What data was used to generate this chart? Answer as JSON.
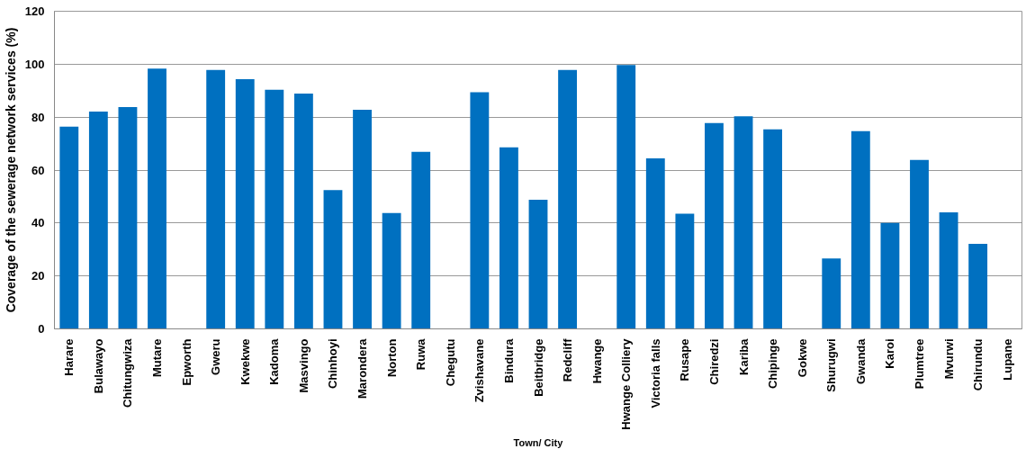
{
  "chart_data": {
    "type": "bar",
    "xlabel": "Town/ City",
    "ylabel": "Coverage of the sewerage network services (%)",
    "categories": [
      "Harare",
      "Bulawayo",
      "Chitungwiza",
      "Mutare",
      "Epworth",
      "Gweru",
      "Kwekwe",
      "Kadoma",
      "Masvingo",
      "Chinhoyi",
      "Marondera",
      "Norton",
      "Ruwa",
      "Chegutu",
      "Zvishavane",
      "Bindura",
      "Beitbridge",
      "Redcliff",
      "Hwange",
      "Hwange Colliery",
      "Victoria falls",
      "Rusape",
      "Chiredzi",
      "Kariba",
      "Chipinge",
      "Gokwe",
      "Shurugwi",
      "Gwanda",
      "Karoi",
      "Plumtree",
      "Mvurwi",
      "Chirundu",
      "Lupane"
    ],
    "values": [
      76.4,
      82.1,
      83.8,
      98.3,
      null,
      97.8,
      94.3,
      90.3,
      88.9,
      52.4,
      82.8,
      43.8,
      66.9,
      null,
      89.4,
      68.6,
      48.8,
      97.8,
      null,
      99.7,
      64.4,
      43.5,
      77.8,
      80.3,
      75.4,
      null,
      26.6,
      74.7,
      40,
      63.8,
      44,
      32.1,
      null
    ],
    "color": "#0070c0",
    "ylim": [
      0,
      120
    ],
    "yticks": [
      0,
      20,
      40,
      60,
      80,
      100,
      120
    ],
    "grid": "y"
  }
}
